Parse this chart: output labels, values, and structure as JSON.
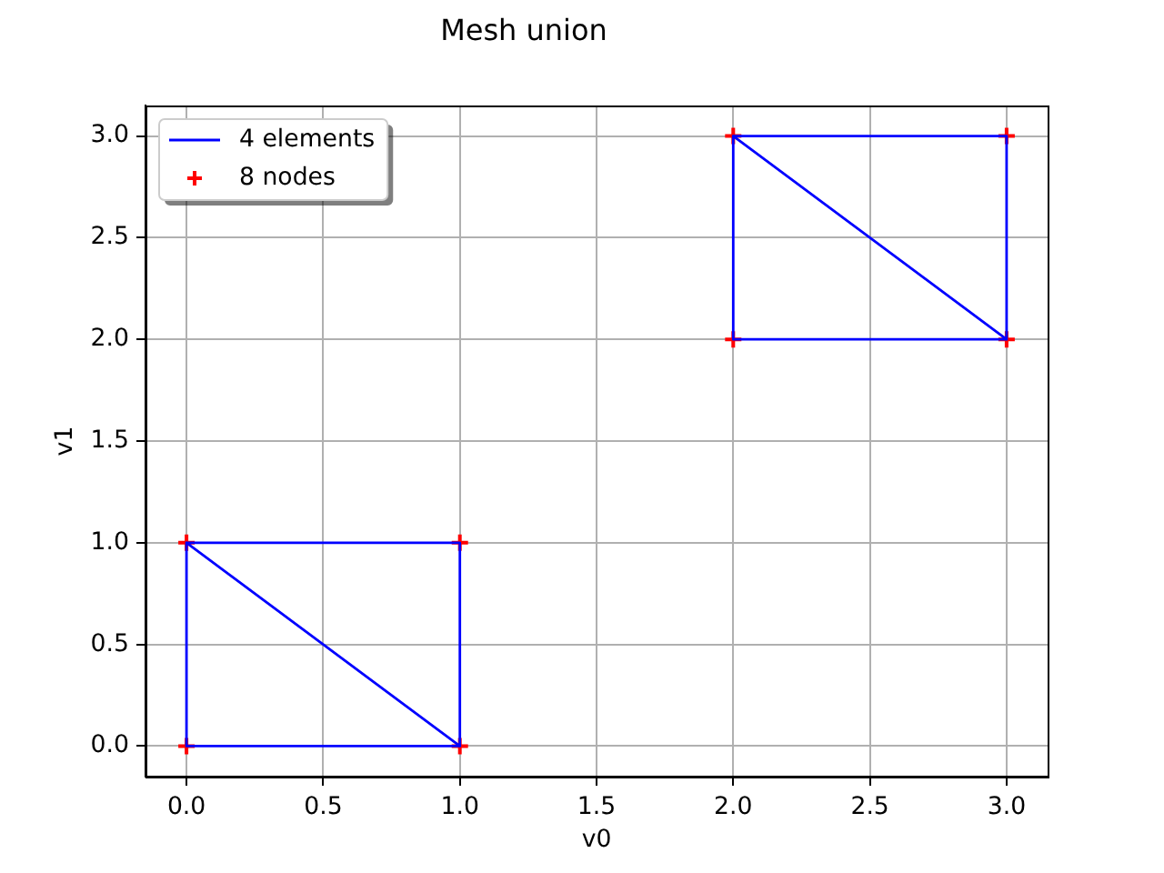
{
  "chart_data": {
    "type": "line",
    "title": "Mesh union",
    "xlabel": "v0",
    "ylabel": "v1",
    "series": [
      {
        "name": "4 elements",
        "color": "#0000ff",
        "x": [
          1,
          0,
          0,
          1,
          1,
          0
        ],
        "values": [
          0,
          1,
          0,
          0,
          1,
          1
        ]
      },
      {
        "color": "#0000ff",
        "x": [
          3,
          2,
          2,
          3,
          3,
          2
        ],
        "values": [
          2,
          3,
          2,
          2,
          3,
          3
        ]
      },
      {
        "name": "8 nodes",
        "type": "scatter",
        "color": "#ff0000",
        "marker": "cross",
        "x": [
          0,
          1,
          1,
          0,
          2,
          3,
          3,
          2
        ],
        "values": [
          0,
          0,
          1,
          1,
          2,
          2,
          3,
          3
        ]
      }
    ],
    "xlim": [
      -0.15,
      3.15
    ],
    "ylim": [
      -0.15,
      3.15
    ],
    "xticks": [
      {
        "value": 0,
        "label": "0.0"
      },
      0.5,
      {
        "value": 1,
        "label": "1.0"
      },
      1.5,
      {
        "value": 2,
        "label": "2.0"
      },
      2.5,
      {
        "value": 3,
        "label": "3.0"
      }
    ],
    "yticks": [
      {
        "value": 0,
        "label": "0.0"
      },
      0.5,
      {
        "value": 1,
        "label": "1.0"
      },
      1.5,
      {
        "value": 2,
        "label": "2.0"
      },
      2.5,
      {
        "value": 3,
        "label": "3.0"
      }
    ],
    "grid": true,
    "legend": "top left"
  }
}
